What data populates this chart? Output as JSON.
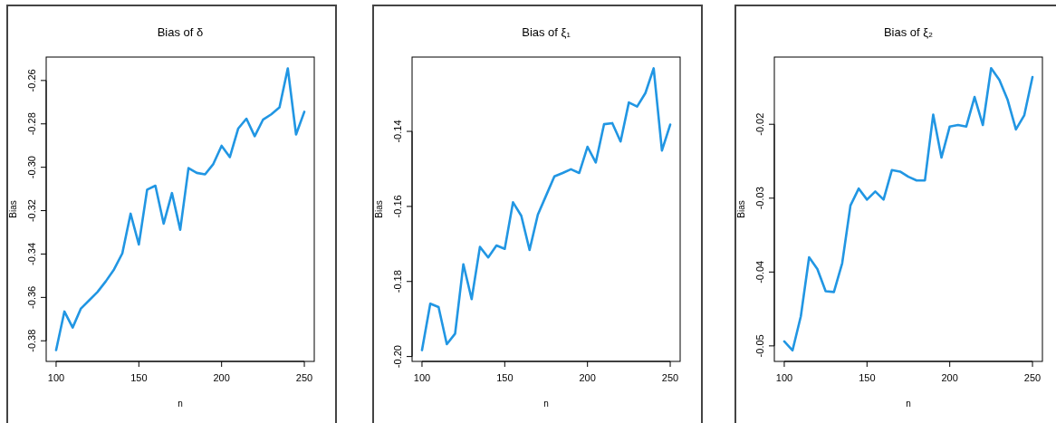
{
  "chart_data": [
    {
      "type": "line",
      "title": "Bias of δ",
      "xlabel": "n",
      "ylabel": "Bias",
      "x": [
        100,
        105,
        110,
        115,
        120,
        125,
        130,
        135,
        140,
        145,
        150,
        155,
        160,
        165,
        170,
        175,
        180,
        185,
        190,
        195,
        200,
        205,
        210,
        215,
        220,
        225,
        230,
        235,
        240,
        245,
        250
      ],
      "values": [
        -0.3843,
        -0.3665,
        -0.3739,
        -0.3651,
        -0.3613,
        -0.3575,
        -0.3526,
        -0.3471,
        -0.3397,
        -0.3214,
        -0.3356,
        -0.3103,
        -0.3085,
        -0.326,
        -0.3119,
        -0.3288,
        -0.3004,
        -0.3026,
        -0.3033,
        -0.2985,
        -0.2901,
        -0.2953,
        -0.2822,
        -0.2776,
        -0.2857,
        -0.2781,
        -0.2756,
        -0.2724,
        -0.2544,
        -0.2849,
        -0.2744
      ],
      "color": "#2196e3",
      "xlim": [
        94,
        256
      ],
      "xticks": [
        100,
        150,
        200,
        250
      ],
      "ylim": [
        -0.3895,
        -0.2492
      ],
      "yticks": [
        -0.38,
        -0.36,
        -0.34,
        -0.32,
        {
          "value": -0.3,
          "label": "-0.30"
        },
        -0.28,
        -0.26
      ]
    },
    {
      "type": "line",
      "title": "Bias of ξ₁",
      "xlabel": "n",
      "ylabel": "Bias",
      "x": [
        100,
        105,
        110,
        115,
        120,
        125,
        130,
        135,
        140,
        145,
        150,
        155,
        160,
        165,
        170,
        175,
        180,
        185,
        190,
        195,
        200,
        205,
        210,
        215,
        220,
        225,
        230,
        235,
        240,
        245,
        250
      ],
      "values": [
        -0.1983,
        -0.1859,
        -0.1868,
        -0.1967,
        -0.1939,
        -0.1754,
        -0.1847,
        -0.1708,
        -0.1736,
        -0.1704,
        -0.1713,
        -0.1589,
        -0.1625,
        -0.1716,
        -0.1622,
        -0.1571,
        -0.152,
        -0.1511,
        -0.1501,
        -0.1511,
        -0.1441,
        -0.1483,
        -0.1381,
        -0.1378,
        -0.1427,
        -0.1323,
        -0.1334,
        -0.1298,
        -0.1232,
        -0.1451,
        -0.1382
      ],
      "color": "#2196e3",
      "xlim": [
        94,
        256
      ],
      "xticks": [
        100,
        150,
        200,
        250
      ],
      "ylim": [
        -0.2013,
        -0.1202
      ],
      "yticks": [
        {
          "value": -0.2,
          "label": "-0.20"
        },
        -0.18,
        -0.16,
        -0.14
      ]
    },
    {
      "type": "line",
      "title": "Bias of ξ₂",
      "xlabel": "n",
      "ylabel": "Bias",
      "x": [
        100,
        105,
        110,
        115,
        120,
        125,
        130,
        135,
        140,
        145,
        150,
        155,
        160,
        165,
        170,
        175,
        180,
        185,
        190,
        195,
        200,
        205,
        210,
        215,
        220,
        225,
        230,
        235,
        240,
        245,
        250
      ],
      "values": [
        -0.0494,
        -0.0506,
        -0.046,
        -0.038,
        -0.0396,
        -0.0426,
        -0.0427,
        -0.0388,
        -0.031,
        -0.0287,
        -0.0302,
        -0.0291,
        -0.0302,
        -0.0262,
        -0.0264,
        -0.0271,
        -0.0276,
        -0.0276,
        -0.0187,
        -0.0245,
        -0.0203,
        -0.0201,
        -0.0203,
        -0.0163,
        -0.0201,
        -0.0124,
        -0.014,
        -0.0167,
        -0.0207,
        -0.0188,
        -0.0136
      ],
      "color": "#2196e3",
      "xlim": [
        94,
        256
      ],
      "xticks": [
        100,
        150,
        200,
        250
      ],
      "ylim": [
        -0.0521,
        -0.0109
      ],
      "yticks": [
        -0.05,
        -0.04,
        -0.03,
        -0.02
      ]
    }
  ]
}
